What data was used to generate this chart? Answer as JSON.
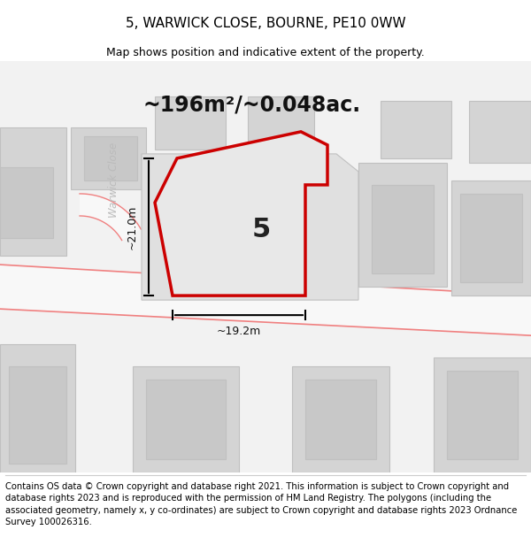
{
  "title": "5, WARWICK CLOSE, BOURNE, PE10 0WW",
  "subtitle": "Map shows position and indicative extent of the property.",
  "footnote": "Contains OS data © Crown copyright and database right 2021. This information is subject to Crown copyright and database rights 2023 and is reproduced with the permission of HM Land Registry. The polygons (including the associated geometry, namely x, y co-ordinates) are subject to Crown copyright and database rights 2023 Ordnance Survey 100026316.",
  "area_label": "~196m²/~0.048ac.",
  "plot_number": "5",
  "dim_vertical": "~21.0m",
  "dim_horizontal": "~19.2m",
  "road_label": "Warwick Close",
  "road_label_diag": "Warwick Close",
  "bg_color": "#f5f5f5",
  "map_bg": "#f0f0f0",
  "road_color": "#ffffff",
  "building_fill": "#d8d8d8",
  "building_stroke": "#c0c0c0",
  "plot_fill": "#e8e8e8",
  "plot_stroke": "#ff0000",
  "road_stripe": "#ffcccc",
  "title_fontsize": 11,
  "subtitle_fontsize": 9,
  "footnote_fontsize": 7.2,
  "area_fontsize": 17,
  "plot_num_fontsize": 22
}
